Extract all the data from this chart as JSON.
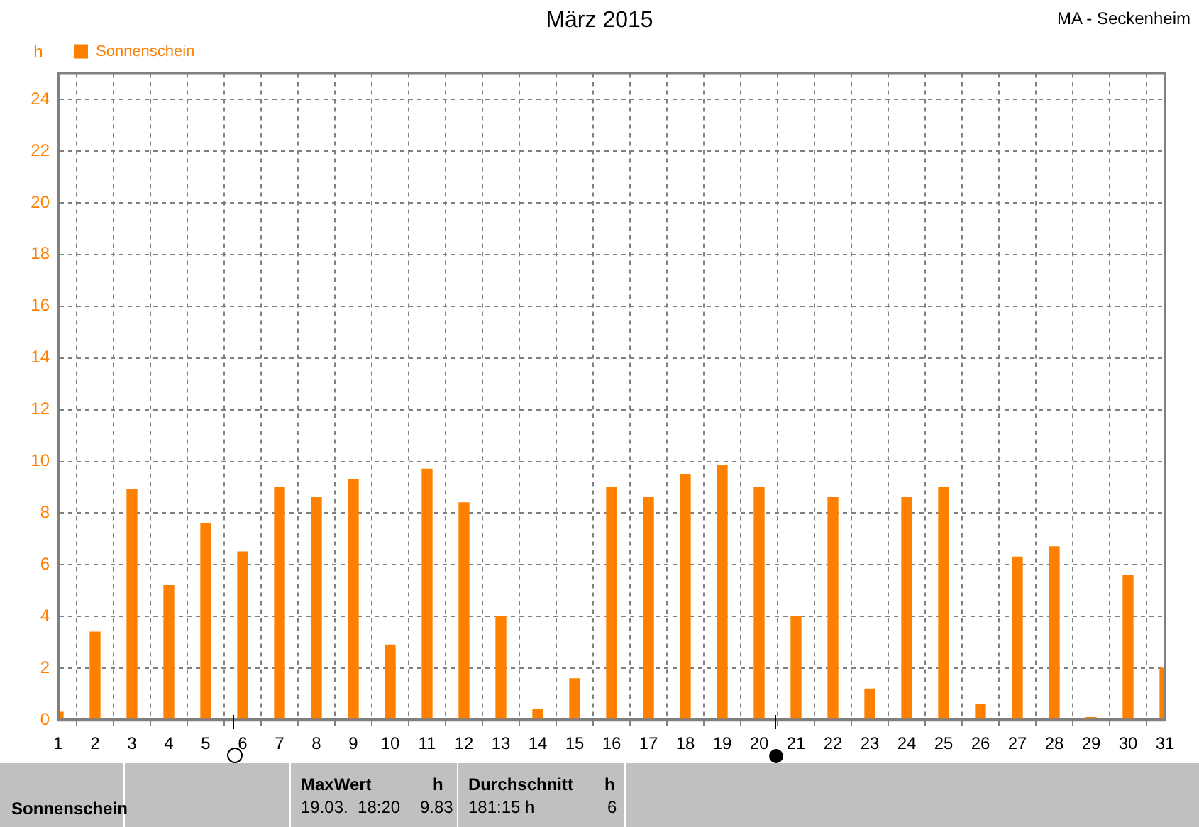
{
  "chart_data": {
    "type": "bar",
    "title": "März 2015",
    "subtitle": "MA - Seckenheim",
    "ylabel": "h",
    "x": [
      1,
      2,
      3,
      4,
      5,
      6,
      7,
      8,
      9,
      10,
      11,
      12,
      13,
      14,
      15,
      16,
      17,
      18,
      19,
      20,
      21,
      22,
      23,
      24,
      25,
      26,
      27,
      28,
      29,
      30,
      31
    ],
    "series": [
      {
        "name": "Sonnenschein",
        "color": "#ff8000",
        "values": [
          0.3,
          3.4,
          8.9,
          5.2,
          7.6,
          6.5,
          9.0,
          8.6,
          9.3,
          2.9,
          9.7,
          8.4,
          4.0,
          0.4,
          1.6,
          9.0,
          8.6,
          9.5,
          9.83,
          9.0,
          4.0,
          8.6,
          1.2,
          8.6,
          9.0,
          0.6,
          6.3,
          6.7,
          0.1,
          5.6,
          2.0
        ]
      }
    ],
    "xlim": [
      1,
      31
    ],
    "xticks": [
      1,
      2,
      3,
      4,
      5,
      6,
      7,
      8,
      9,
      10,
      11,
      12,
      13,
      14,
      15,
      16,
      17,
      18,
      19,
      20,
      21,
      22,
      23,
      24,
      25,
      26,
      27,
      28,
      29,
      30,
      31
    ],
    "ylim": [
      0,
      25
    ],
    "yticks": [
      0,
      2,
      4,
      6,
      8,
      10,
      12,
      14,
      16,
      18,
      20,
      22,
      24
    ],
    "grid": true,
    "legend": "top left",
    "annotations": [
      "Sonnenschein",
      "MaxWert",
      "h",
      "19.03.  18:20",
      "9.83",
      "Durchschnitt",
      "h",
      "181:15 h",
      "6"
    ]
  }
}
